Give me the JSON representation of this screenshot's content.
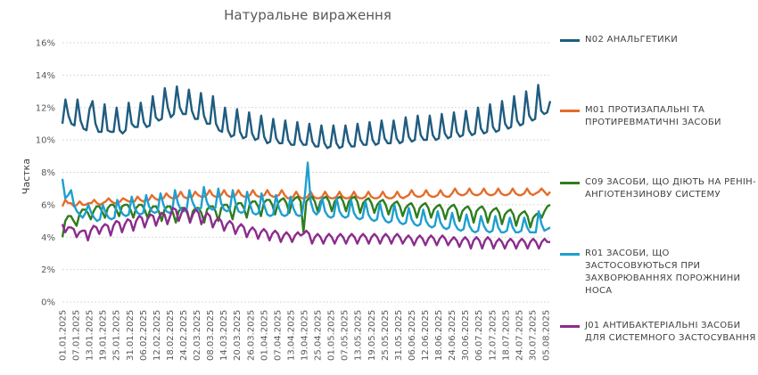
{
  "chart_data": {
    "type": "line",
    "title": "Натуральне  вираження",
    "ylabel": "Частка",
    "xlabel": "",
    "ylim": [
      0,
      16
    ],
    "y_ticks": [
      "0%",
      "2%",
      "4%",
      "6%",
      "8%",
      "10%",
      "12%",
      "14%",
      "16%"
    ],
    "x_labels": [
      "01.01.2025",
      "07.01.2025",
      "13.01.2025",
      "19.01.2025",
      "25.01.2025",
      "31.01.2025",
      "06.02.2025",
      "12.02.2025",
      "18.02.2025",
      "24.02.2025",
      "02.03.2025",
      "08.03.2025",
      "14.03.2025",
      "20.03.2025",
      "26.03.2025",
      "01.04.2025",
      "07.04.2025",
      "13.04.2025",
      "19.04.2025",
      "25.04.2025",
      "01.05.2025",
      "07.05.2025",
      "13.05.2025",
      "19.05.2025",
      "25.05.2025",
      "31.05.2025",
      "06.06.2025",
      "12.06.2025",
      "18.06.2025",
      "24.06.2025",
      "30.06.2025",
      "06.07.2025",
      "12.07.2025",
      "18.07.2025",
      "24.07.2025",
      "30.07.2025",
      "05.08.2025"
    ],
    "x_range_days": [
      0,
      218
    ],
    "grid": "horizontal",
    "legend_position": "right",
    "series": [
      {
        "name": "N02  АНАЛЬГЕТИКИ",
        "color": "#1F5C80",
        "values": [
          11.0,
          12.5,
          11.5,
          11.0,
          10.9,
          12.5,
          11.2,
          10.7,
          10.6,
          11.9,
          12.4,
          11.0,
          10.5,
          10.5,
          12.2,
          10.6,
          10.5,
          10.5,
          12.0,
          10.6,
          10.4,
          10.6,
          12.3,
          11.0,
          10.8,
          10.8,
          12.3,
          11.1,
          10.8,
          10.9,
          12.7,
          11.4,
          11.2,
          11.3,
          13.2,
          12.0,
          11.4,
          11.6,
          13.3,
          12.0,
          11.6,
          11.6,
          13.1,
          11.8,
          11.3,
          11.3,
          12.9,
          11.5,
          11.0,
          11.0,
          12.7,
          11.0,
          10.6,
          10.5,
          12.0,
          10.6,
          10.2,
          10.3,
          11.9,
          10.5,
          10.1,
          10.2,
          11.7,
          10.4,
          10.0,
          10.1,
          11.5,
          10.2,
          9.8,
          9.9,
          11.3,
          10.1,
          9.8,
          9.8,
          11.2,
          10.0,
          9.7,
          9.7,
          11.1,
          10.0,
          9.7,
          9.7,
          11.0,
          9.9,
          9.6,
          9.6,
          10.9,
          9.8,
          9.5,
          9.6,
          10.9,
          9.8,
          9.5,
          9.6,
          10.9,
          9.9,
          9.6,
          9.6,
          11.0,
          10.0,
          9.7,
          9.7,
          11.1,
          10.0,
          9.7,
          9.8,
          11.2,
          10.1,
          9.8,
          9.8,
          11.2,
          10.1,
          9.8,
          9.9,
          11.4,
          10.2,
          9.9,
          10.0,
          11.5,
          10.3,
          10.0,
          10.0,
          11.5,
          10.3,
          10.0,
          10.1,
          11.6,
          10.4,
          10.1,
          10.2,
          11.7,
          10.5,
          10.2,
          10.3,
          11.8,
          10.6,
          10.3,
          10.4,
          12.0,
          10.7,
          10.4,
          10.5,
          12.2,
          10.8,
          10.5,
          10.6,
          12.4,
          11.0,
          10.7,
          10.8,
          12.7,
          11.2,
          10.9,
          11.0,
          13.0,
          11.5,
          11.2,
          11.3,
          13.4,
          11.8,
          11.6,
          11.7,
          12.4
        ]
      },
      {
        "name": "M01  ПРОТИЗАПАЛЬНІ  ТА ПРОТИРЕВМАТИЧНІ  ЗАСОБИ",
        "color": "#E46C2B",
        "values": [
          5.9,
          6.3,
          6.1,
          6.1,
          5.9,
          6.0,
          6.2,
          6.0,
          6.0,
          6.1,
          6.1,
          6.3,
          6.1,
          6.0,
          6.1,
          6.2,
          6.4,
          6.2,
          6.1,
          6.1,
          6.2,
          6.4,
          6.3,
          6.2,
          6.2,
          6.2,
          6.5,
          6.3,
          6.2,
          6.3,
          6.3,
          6.6,
          6.4,
          6.3,
          6.4,
          6.4,
          6.7,
          6.5,
          6.4,
          6.4,
          6.5,
          6.8,
          6.5,
          6.4,
          6.5,
          6.5,
          6.8,
          6.6,
          6.5,
          6.5,
          6.6,
          6.9,
          6.6,
          6.5,
          6.5,
          6.6,
          6.9,
          6.6,
          6.5,
          6.5,
          6.6,
          6.9,
          6.6,
          6.5,
          6.5,
          6.6,
          6.9,
          6.6,
          6.5,
          6.5,
          6.6,
          6.9,
          6.6,
          6.5,
          6.5,
          6.6,
          6.9,
          6.6,
          6.4,
          6.4,
          6.5,
          6.8,
          6.5,
          6.4,
          6.4,
          6.5,
          6.8,
          6.5,
          6.4,
          6.4,
          6.5,
          6.8,
          6.5,
          6.4,
          6.4,
          6.5,
          6.8,
          6.5,
          6.4,
          6.4,
          6.5,
          6.8,
          6.5,
          6.4,
          6.4,
          6.5,
          6.8,
          6.5,
          6.4,
          6.4,
          6.5,
          6.8,
          6.5,
          6.4,
          6.4,
          6.5,
          6.8,
          6.5,
          6.4,
          6.5,
          6.6,
          6.9,
          6.6,
          6.5,
          6.5,
          6.6,
          6.9,
          6.6,
          6.5,
          6.5,
          6.6,
          6.9,
          6.6,
          6.5,
          6.5,
          6.7,
          7.0,
          6.7,
          6.6,
          6.6,
          6.7,
          7.0,
          6.7,
          6.6,
          6.6,
          6.7,
          7.0,
          6.7,
          6.6,
          6.6,
          6.7,
          7.0,
          6.7,
          6.6,
          6.6,
          6.7,
          7.0,
          6.7,
          6.6,
          6.6,
          6.7,
          7.0,
          6.7,
          6.6,
          6.7,
          6.8,
          7.0,
          6.8,
          6.6,
          6.8
        ]
      },
      {
        "name": "C09  ЗАСОБИ,  ЩО  ДІЮТЬ  НА  РЕНІН-АНГІОТЕНЗИНОВУ  СИСТЕМУ",
        "color": "#2E7D1E",
        "values": [
          4.0,
          5.0,
          5.3,
          5.3,
          5.0,
          4.7,
          5.4,
          5.7,
          5.7,
          5.5,
          5.1,
          5.6,
          5.9,
          5.9,
          5.6,
          5.2,
          5.8,
          6.0,
          6.0,
          5.7,
          5.3,
          5.9,
          6.0,
          6.0,
          5.7,
          5.2,
          5.8,
          6.0,
          6.0,
          5.7,
          5.2,
          5.7,
          5.9,
          5.9,
          5.6,
          5.0,
          5.7,
          5.9,
          5.9,
          5.5,
          4.9,
          5.6,
          5.8,
          5.8,
          5.5,
          4.9,
          5.6,
          5.8,
          5.8,
          5.5,
          4.9,
          5.7,
          5.9,
          5.9,
          5.6,
          5.0,
          5.8,
          6.0,
          6.0,
          5.7,
          5.1,
          5.9,
          6.1,
          6.1,
          5.8,
          5.2,
          6.0,
          6.2,
          6.2,
          5.9,
          5.3,
          6.1,
          6.3,
          6.3,
          6.0,
          5.4,
          6.1,
          6.3,
          6.4,
          6.1,
          5.5,
          6.2,
          6.4,
          6.5,
          6.2,
          4.3,
          6.2,
          6.4,
          6.5,
          6.2,
          5.6,
          6.2,
          6.4,
          6.5,
          6.2,
          5.6,
          6.2,
          6.4,
          6.5,
          6.2,
          5.6,
          6.2,
          6.4,
          6.5,
          6.2,
          5.5,
          6.1,
          6.3,
          6.4,
          6.1,
          5.5,
          6.0,
          6.2,
          6.3,
          6.0,
          5.4,
          5.9,
          6.1,
          6.2,
          5.9,
          5.3,
          5.8,
          6.0,
          6.1,
          5.8,
          5.2,
          5.8,
          6.0,
          6.1,
          5.8,
          5.2,
          5.7,
          5.9,
          6.0,
          5.7,
          5.1,
          5.7,
          5.9,
          6.0,
          5.7,
          5.0,
          5.6,
          5.8,
          5.9,
          5.6,
          4.9,
          5.6,
          5.8,
          5.9,
          5.6,
          4.9,
          5.5,
          5.7,
          5.8,
          5.5,
          4.8,
          5.4,
          5.6,
          5.7,
          5.4,
          4.7,
          5.3,
          5.5,
          5.6,
          5.3,
          4.6,
          5.2,
          5.4,
          5.5,
          5.2,
          5.6,
          5.9,
          6.0
        ]
      },
      {
        "name": "R01  ЗАСОБИ,  ЩО  ЗАСТОСОВУЮТЬСЯ ПРИ  ЗАХВОРЮВАННЯХ  ПОРОЖНИНИ НОСА",
        "color": "#1E9FD0",
        "values": [
          7.6,
          6.4,
          6.6,
          6.9,
          6.0,
          5.6,
          5.4,
          5.2,
          5.5,
          6.0,
          5.5,
          5.2,
          5.0,
          5.1,
          6.0,
          5.5,
          5.2,
          5.1,
          5.2,
          6.3,
          5.7,
          5.4,
          5.3,
          5.4,
          6.5,
          5.8,
          5.5,
          5.4,
          5.5,
          6.6,
          5.9,
          5.6,
          5.5,
          5.6,
          6.7,
          6.0,
          5.6,
          5.5,
          5.6,
          6.9,
          6.1,
          5.7,
          5.6,
          5.7,
          6.9,
          6.2,
          5.8,
          5.7,
          5.8,
          7.1,
          6.2,
          5.8,
          5.7,
          5.8,
          7.0,
          6.1,
          5.7,
          5.6,
          5.7,
          6.9,
          6.1,
          5.6,
          5.5,
          5.6,
          6.8,
          6.0,
          5.5,
          5.4,
          5.5,
          6.7,
          5.9,
          5.4,
          5.3,
          5.4,
          6.6,
          5.8,
          5.4,
          5.3,
          5.4,
          6.5,
          5.8,
          5.4,
          5.3,
          5.4,
          6.6,
          8.6,
          6.2,
          5.6,
          5.4,
          5.6,
          6.4,
          5.6,
          5.3,
          5.2,
          5.3,
          6.4,
          5.6,
          5.3,
          5.2,
          5.3,
          6.3,
          5.5,
          5.2,
          5.1,
          5.2,
          6.2,
          5.4,
          5.1,
          5.0,
          5.1,
          6.1,
          5.3,
          5.0,
          4.9,
          5.0,
          6.0,
          5.2,
          4.9,
          4.8,
          4.9,
          5.8,
          5.1,
          4.8,
          4.7,
          4.8,
          5.7,
          5.0,
          4.7,
          4.6,
          4.7,
          5.6,
          4.9,
          4.6,
          4.5,
          4.6,
          5.5,
          4.8,
          4.5,
          4.4,
          4.5,
          5.4,
          4.7,
          4.4,
          4.3,
          4.4,
          5.3,
          4.7,
          4.4,
          4.3,
          4.4,
          5.3,
          4.6,
          4.3,
          4.3,
          4.4,
          5.2,
          4.6,
          4.3,
          4.3,
          4.4,
          5.2,
          4.6,
          4.3,
          4.3,
          4.3,
          5.6,
          4.8,
          4.4,
          4.5,
          4.6
        ]
      },
      {
        "name": "J01  АНТИБАКТЕРІАЛЬНІ  ЗАСОБИ  ДЛЯ СИСТЕМНОГО  ЗАСТОСУВАННЯ",
        "color": "#8B2C8C",
        "values": [
          4.8,
          4.3,
          4.6,
          4.6,
          4.5,
          4.0,
          4.3,
          4.4,
          4.4,
          3.8,
          4.4,
          4.7,
          4.6,
          4.2,
          4.6,
          4.8,
          4.7,
          4.1,
          4.7,
          5.0,
          4.9,
          4.3,
          4.8,
          5.1,
          5.0,
          4.4,
          5.0,
          5.3,
          5.2,
          4.6,
          5.1,
          5.4,
          5.3,
          4.7,
          5.2,
          5.5,
          5.4,
          4.8,
          5.3,
          5.8,
          5.7,
          5.0,
          5.5,
          5.8,
          5.6,
          4.9,
          5.4,
          5.7,
          5.5,
          4.8,
          5.2,
          5.5,
          5.3,
          4.6,
          5.0,
          5.2,
          5.0,
          4.4,
          4.8,
          5.0,
          4.8,
          4.2,
          4.6,
          4.8,
          4.6,
          4.0,
          4.4,
          4.6,
          4.4,
          3.9,
          4.3,
          4.5,
          4.3,
          3.8,
          4.2,
          4.4,
          4.2,
          3.7,
          4.1,
          4.3,
          4.1,
          3.7,
          4.1,
          4.3,
          4.1,
          4.2,
          4.4,
          4.2,
          3.6,
          4.0,
          4.2,
          4.0,
          3.6,
          4.0,
          4.2,
          4.0,
          3.6,
          4.0,
          4.2,
          4.0,
          3.6,
          4.0,
          4.2,
          4.0,
          3.6,
          4.0,
          4.2,
          4.0,
          3.6,
          4.0,
          4.2,
          4.0,
          3.6,
          4.0,
          4.2,
          4.0,
          3.6,
          4.0,
          4.2,
          4.0,
          3.6,
          3.9,
          4.1,
          3.9,
          3.5,
          3.9,
          4.1,
          3.9,
          3.5,
          3.9,
          4.1,
          3.9,
          3.5,
          3.9,
          4.1,
          3.9,
          3.5,
          3.8,
          4.0,
          3.8,
          3.4,
          3.8,
          4.0,
          3.8,
          3.3,
          3.8,
          4.0,
          3.8,
          3.3,
          3.8,
          4.0,
          3.8,
          3.3,
          3.7,
          3.9,
          3.7,
          3.3,
          3.7,
          3.9,
          3.7,
          3.3,
          3.7,
          3.9,
          3.7,
          3.3,
          3.7,
          3.9,
          3.7,
          3.3,
          3.7,
          3.9,
          3.7,
          3.7
        ]
      }
    ]
  }
}
